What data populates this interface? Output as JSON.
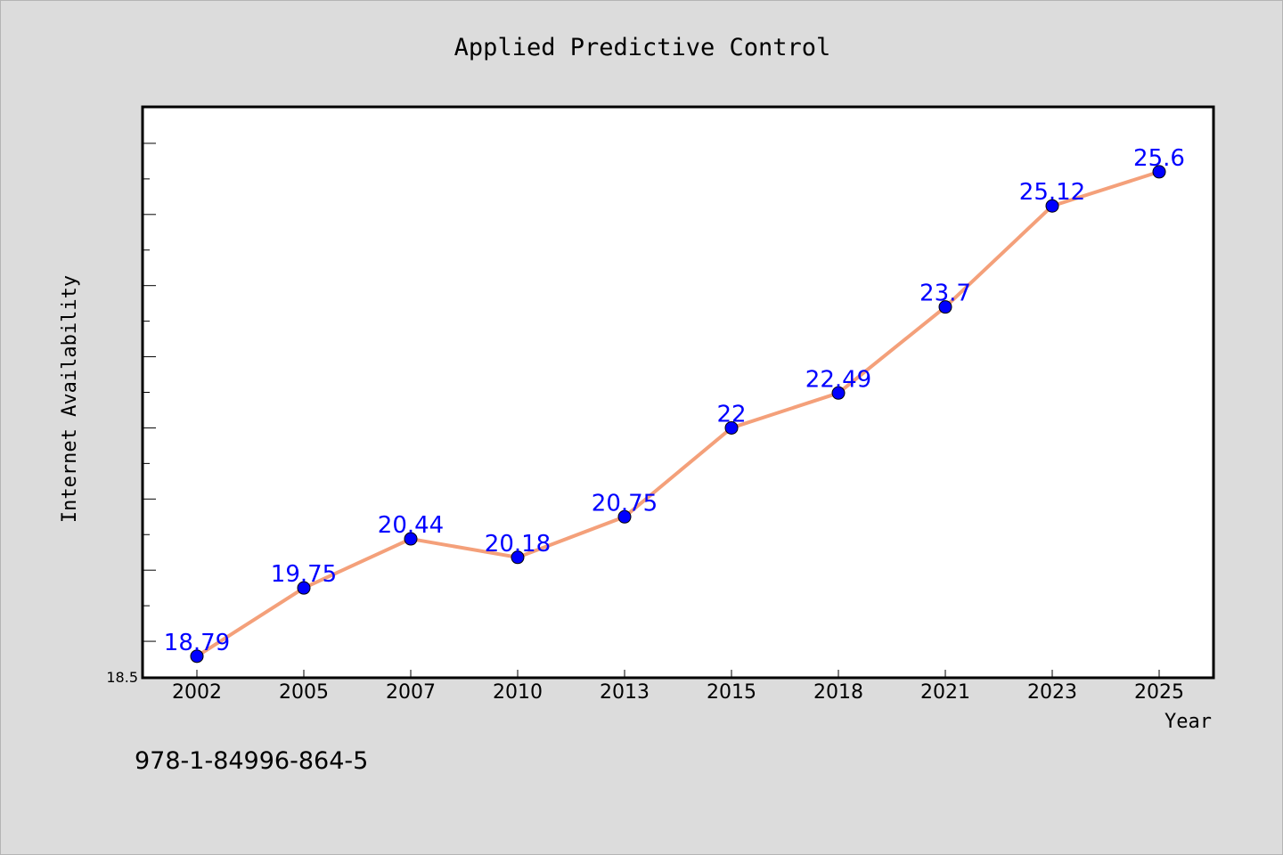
{
  "chart_data": {
    "type": "line",
    "title": "Applied Predictive Control",
    "xlabel": "Year",
    "ylabel": "Internet Availability",
    "categories": [
      "2002",
      "2005",
      "2007",
      "2010",
      "2013",
      "2015",
      "2018",
      "2021",
      "2023",
      "2025"
    ],
    "series": [
      {
        "values": [
          18.79,
          19.75,
          20.44,
          20.18,
          20.75,
          22,
          22.49,
          23.7,
          25.12,
          25.6
        ],
        "data_labels": [
          "18.79",
          "19.75",
          "20.44",
          "20.18",
          "20.75",
          "22",
          "22.49",
          "23.7",
          "25.12",
          "25.6"
        ]
      }
    ],
    "ylim": [
      18.5,
      26.5
    ],
    "y_tick_labels": [
      "18.5"
    ],
    "grid": false,
    "legend": "none",
    "annotation": "978-1-84996-864-5",
    "colors": {
      "background": "#dcdcdc",
      "plot_background": "#ffffff",
      "line": "#f4a07a",
      "marker": "#0000ff",
      "data_label": "#0000ff",
      "axis": "#000000"
    }
  }
}
